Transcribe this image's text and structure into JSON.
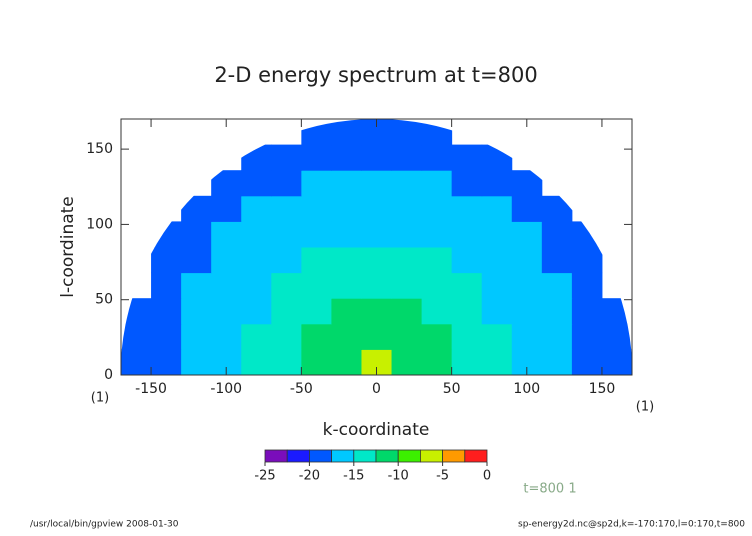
{
  "chart_data": {
    "type": "heatmap",
    "title": "2-D energy spectrum at t=800",
    "xlabel": "k-coordinate",
    "ylabel": "l-coordinate",
    "xlim": [
      -170,
      170
    ],
    "ylim": [
      0,
      170
    ],
    "xticks": [
      -150,
      -100,
      -50,
      0,
      50,
      100,
      150
    ],
    "yticks": [
      0,
      50,
      100,
      150
    ],
    "x_edges": [
      -170,
      -150,
      -130,
      -110,
      -90,
      -70,
      -50,
      -30,
      -10,
      10,
      30,
      50,
      70,
      90,
      110,
      130,
      150,
      170
    ],
    "y_edges": [
      0,
      17,
      34,
      51,
      68,
      85,
      102,
      119,
      136,
      153,
      170
    ],
    "z": [
      [
        -19.5,
        -18,
        -16.5,
        -15.5,
        -14.5,
        -13.5,
        -12.5,
        -11,
        -7,
        -11,
        -12.5,
        -13.5,
        -14.5,
        -15.5,
        -16.5,
        -18,
        -19.5
      ],
      [
        -19.5,
        -18,
        -16.5,
        -15.5,
        -14.5,
        -13.5,
        -12.5,
        -12.5,
        -11,
        -12.5,
        -12.5,
        -13.5,
        -14.5,
        -15.5,
        -16.5,
        -18,
        -19.5
      ],
      [
        -19.5,
        -18,
        -16.5,
        -15.5,
        -15.5,
        -14.5,
        -13.5,
        -12.5,
        -12.5,
        -12.5,
        -13.5,
        -14.5,
        -15.5,
        -15.5,
        -16.5,
        -18,
        -19.5
      ],
      [
        null,
        -19.5,
        -17,
        -16.5,
        -15.5,
        -14.5,
        -14.5,
        -13.5,
        -13.5,
        -13.5,
        -14.5,
        -14.5,
        -15.5,
        -16.5,
        -17,
        -19.5,
        null
      ],
      [
        null,
        -19.5,
        -18,
        -16.5,
        -16.5,
        -15.5,
        -14.5,
        -14.5,
        -14.5,
        -14.5,
        -14.5,
        -15.5,
        -16.5,
        -16.5,
        -18,
        -19.5,
        null
      ],
      [
        null,
        -19.5,
        -19.5,
        -17,
        -16.5,
        -16.5,
        -15.5,
        -15.5,
        -15.5,
        -15.5,
        -15.5,
        -16.5,
        -16.5,
        -17,
        -19.5,
        -19.5,
        null
      ],
      [
        null,
        null,
        -19.5,
        -18,
        -17,
        -16.5,
        -16.5,
        -16.5,
        -16.5,
        -16.5,
        -16.5,
        -16.5,
        -17,
        -18,
        -19.5,
        null,
        null
      ],
      [
        null,
        null,
        null,
        -19.5,
        -19.5,
        -18,
        -17,
        -16.5,
        -16.5,
        -16.5,
        -17,
        -18,
        -19.5,
        -19.5,
        null,
        null,
        null
      ],
      [
        null,
        null,
        null,
        null,
        -19.5,
        -19.5,
        -18,
        -18,
        -18,
        -18,
        -18,
        -19.5,
        -19.5,
        null,
        null,
        null,
        null
      ],
      [
        null,
        null,
        null,
        null,
        null,
        null,
        -19.5,
        -19.5,
        -19.5,
        -19.5,
        -19.5,
        null,
        null,
        null,
        null,
        null,
        null
      ]
    ],
    "colorbar": {
      "levels": [
        -25,
        -22.5,
        -20,
        -17.5,
        -15,
        -12.5,
        -10,
        -7.5,
        -5,
        -2.5,
        0
      ],
      "colors": [
        "#7a0dbb",
        "#1a1aff",
        "#0058ff",
        "#00c8ff",
        "#00e8c8",
        "#00d86a",
        "#3cf000",
        "#c8f000",
        "#ff9a00",
        "#ff1e1e",
        "#ffa0a0"
      ],
      "ticks": [
        -25,
        -20,
        -15,
        -10,
        -5,
        0
      ]
    },
    "annotations": [
      "(1)",
      "(1)",
      "t=800 1"
    ],
    "footer_left": "/usr/local/bin/gpview  2008-01-30",
    "footer_right": "sp-energy2d.nc@sp2d,k=-170:170,l=0:170,t=800"
  }
}
